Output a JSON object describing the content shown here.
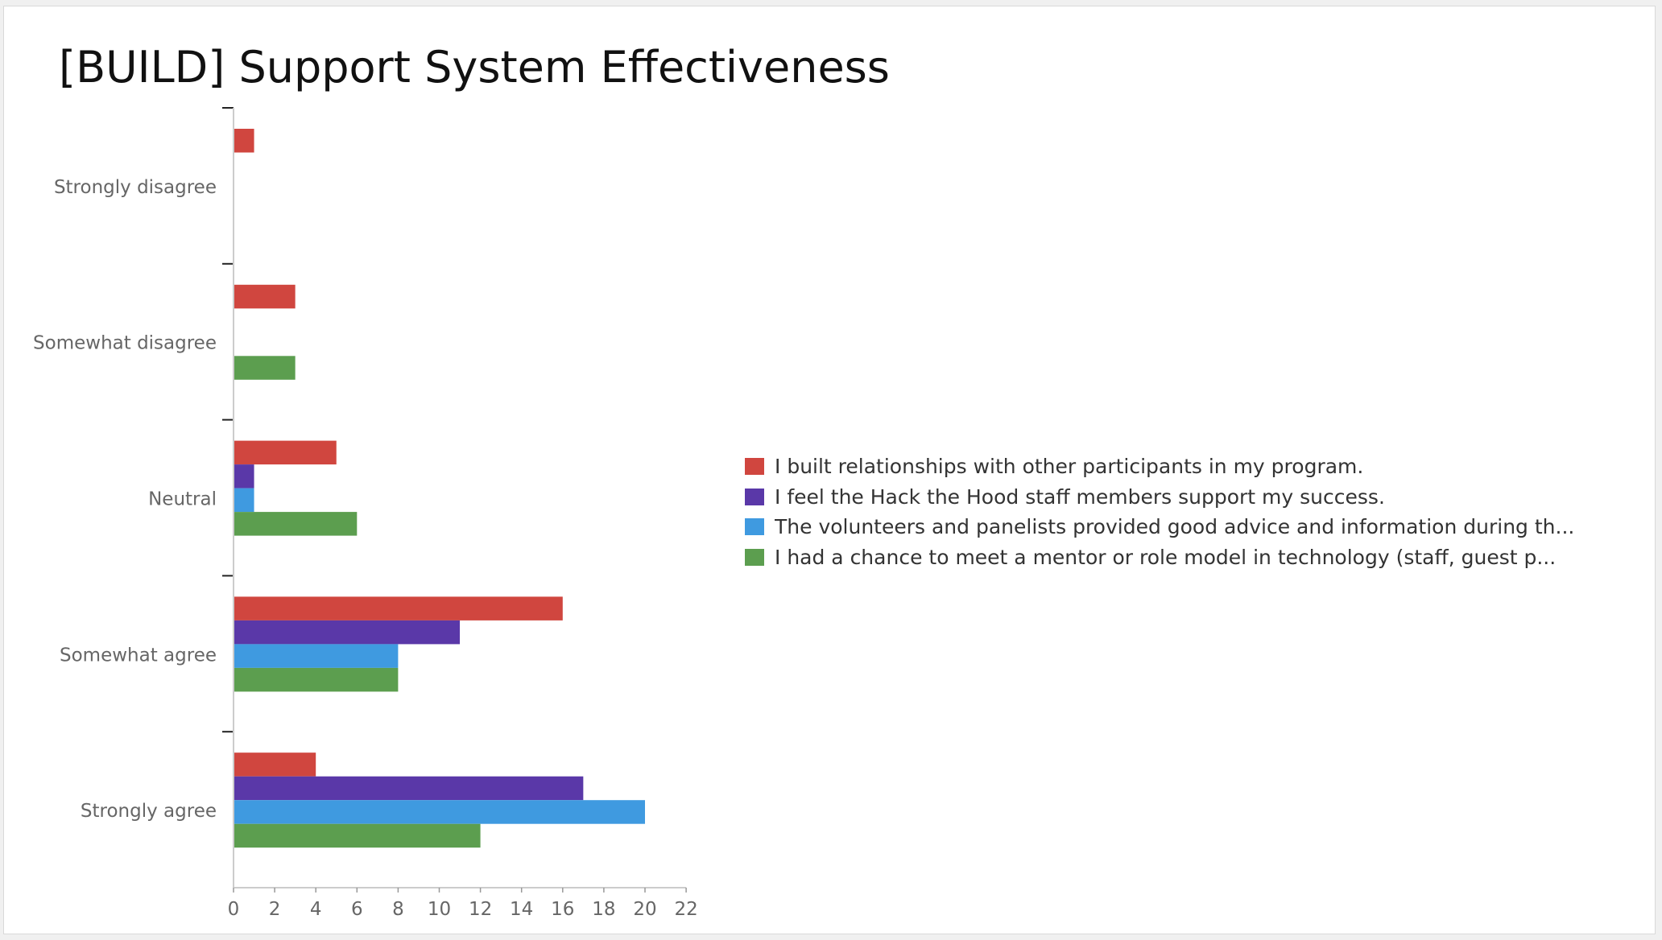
{
  "slide": {
    "title": "[BUILD] Support System Effectiveness"
  },
  "chart_data": {
    "type": "bar",
    "orientation": "horizontal",
    "categories": [
      "Strongly disagree",
      "Somewhat disagree",
      "Neutral",
      "Somewhat agree",
      "Strongly agree"
    ],
    "series": [
      {
        "name": "I built relationships with other participants in my program.",
        "color": "#d0463f",
        "values": [
          1,
          3,
          5,
          16,
          4
        ]
      },
      {
        "name": "I feel the Hack the Hood staff members support my success.",
        "color": "#5a38a8",
        "values": [
          0,
          0,
          1,
          11,
          17
        ]
      },
      {
        "name": "The volunteers and panelists provided good advice and information during th...",
        "color": "#3f9ae0",
        "values": [
          0,
          0,
          1,
          8,
          20
        ]
      },
      {
        "name": "I had a chance to meet a mentor or role model in technology (staff, guest p...",
        "color": "#5c9e4f",
        "values": [
          0,
          3,
          6,
          8,
          12
        ]
      }
    ],
    "x_ticks": [
      "0",
      "2",
      "4",
      "6",
      "8",
      "10",
      "12",
      "14",
      "16",
      "18",
      "20",
      "22"
    ],
    "xlim": [
      0,
      22
    ],
    "xlabel": "",
    "ylabel": "",
    "grid": false,
    "legend_position": "right"
  }
}
